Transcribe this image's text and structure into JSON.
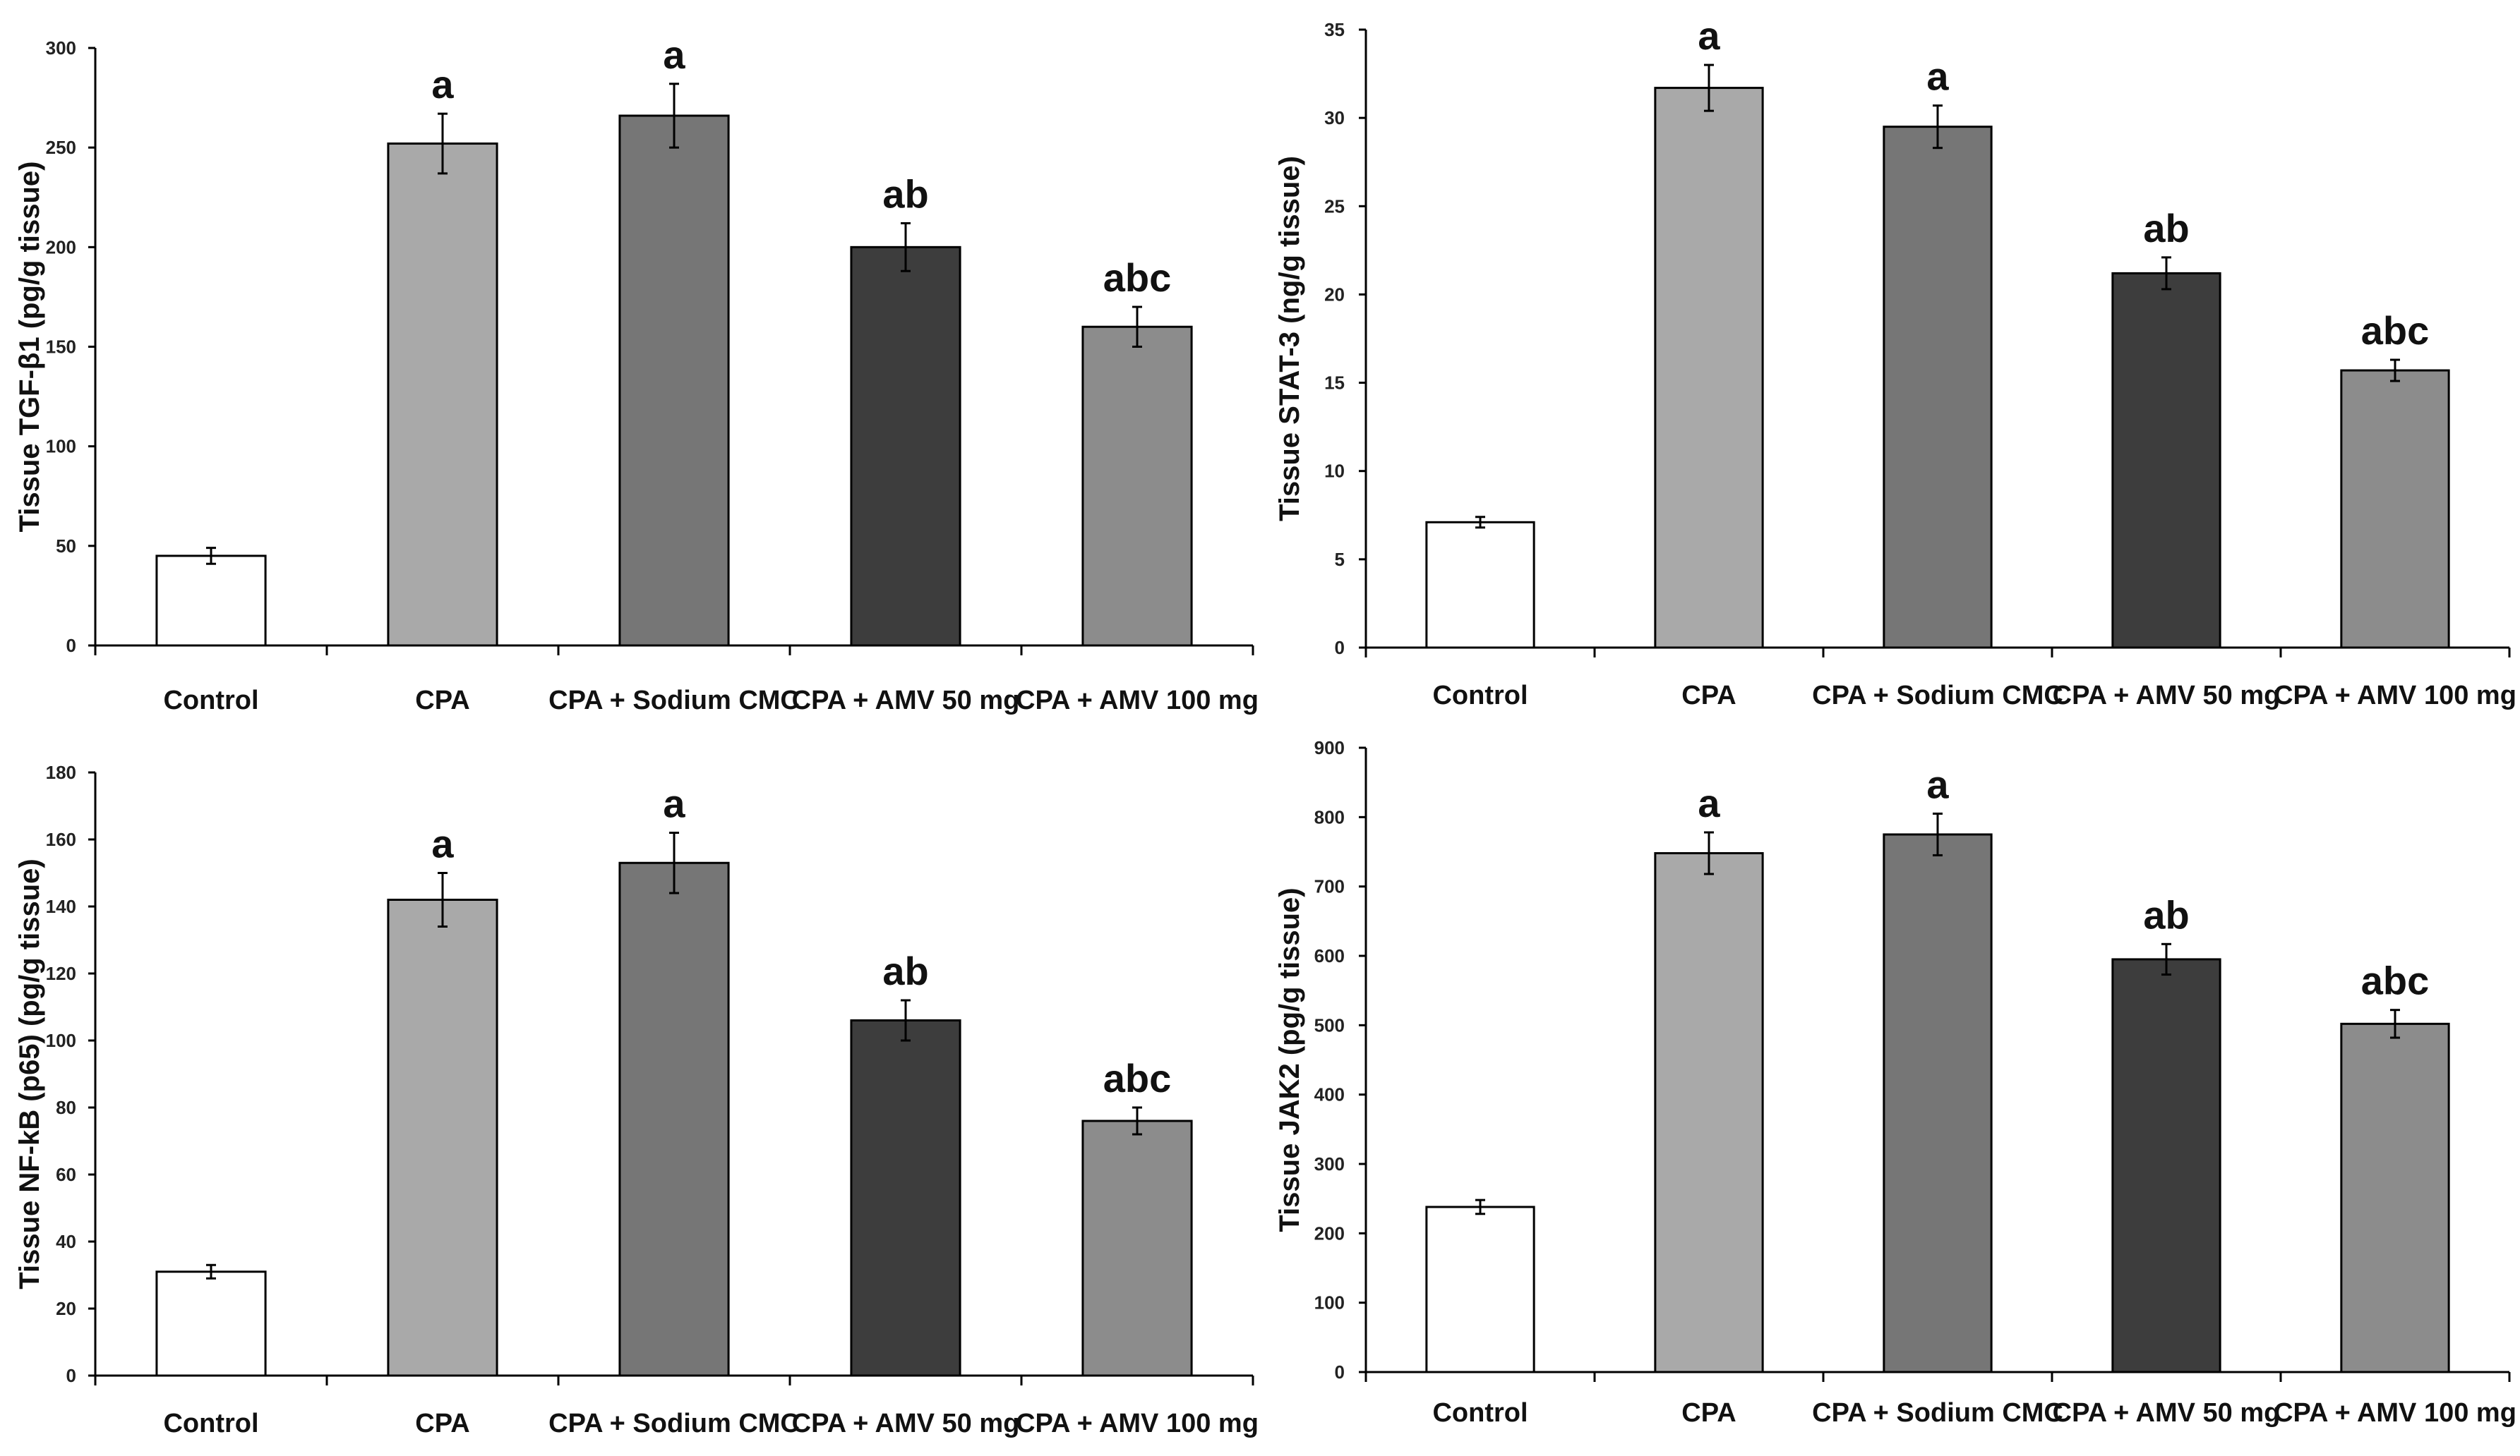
{
  "colors": {
    "Control": "#ffffff",
    "CPA": "#a9a9a9",
    "CPA + Sodium CMC": "#767676",
    "CPA + AMV 50 mg": "#3d3d3d",
    "CPA + AMV 100 mg": "#8c8c8c",
    "outline": "#000000"
  },
  "chart_data": [
    {
      "type": "bar",
      "position": "top-left",
      "categories": [
        "Control",
        "CPA",
        "CPA + Sodium CMC",
        "CPA + AMV 50 mg",
        "CPA + AMV 100 mg"
      ],
      "values": [
        45,
        252,
        266,
        200,
        160
      ],
      "errors": [
        4,
        15,
        16,
        12,
        10
      ],
      "significance": [
        "",
        "a",
        "a",
        "ab",
        "abc"
      ],
      "xlabel": "",
      "ylabel": "Tissue TGF-β1 (pg/g tissue)",
      "ylim": [
        0,
        300
      ],
      "yticks": [
        0,
        50,
        100,
        150,
        200,
        250,
        300
      ],
      "grid": false,
      "legend": "none"
    },
    {
      "type": "bar",
      "position": "top-right",
      "categories": [
        "Control",
        "CPA",
        "CPA + Sodium CMC",
        "CPA + AMV 50 mg",
        "CPA + AMV 100 mg"
      ],
      "values": [
        7.1,
        31.7,
        29.5,
        21.2,
        15.7
      ],
      "errors": [
        0.3,
        1.3,
        1.2,
        0.9,
        0.6
      ],
      "significance": [
        "",
        "a",
        "a",
        "ab",
        "abc"
      ],
      "xlabel": "",
      "ylabel": "Tissue STAT-3 (ng/g tissue)",
      "ylim": [
        0,
        35
      ],
      "yticks": [
        0,
        5,
        10,
        15,
        20,
        25,
        30,
        35
      ],
      "grid": false,
      "legend": "none"
    },
    {
      "type": "bar",
      "position": "bottom-left",
      "categories": [
        "Control",
        "CPA",
        "CPA + Sodium CMC",
        "CPA + AMV 50 mg",
        "CPA + AMV 100 mg"
      ],
      "values": [
        31,
        142,
        153,
        106,
        76
      ],
      "errors": [
        2,
        8,
        9,
        6,
        4
      ],
      "significance": [
        "",
        "a",
        "a",
        "ab",
        "abc"
      ],
      "xlabel": "",
      "ylabel": "Tissue NF-kB (p65) (pg/g tissue)",
      "ylim": [
        0,
        180
      ],
      "yticks": [
        0,
        20,
        40,
        60,
        80,
        100,
        120,
        140,
        160,
        180
      ],
      "grid": false,
      "legend": "none"
    },
    {
      "type": "bar",
      "position": "bottom-right",
      "categories": [
        "Control",
        "CPA",
        "CPA + Sodium CMC",
        "CPA + AMV 50 mg",
        "CPA + AMV 100 mg"
      ],
      "values": [
        238,
        748,
        775,
        595,
        502
      ],
      "errors": [
        10,
        30,
        30,
        22,
        20
      ],
      "significance": [
        "",
        "a",
        "a",
        "ab",
        "abc"
      ],
      "xlabel": "",
      "ylabel": "Tissue JAK2 (pg/g tissue)",
      "ylim": [
        0,
        900
      ],
      "yticks": [
        0,
        100,
        200,
        300,
        400,
        500,
        600,
        700,
        800,
        900
      ],
      "grid": false,
      "legend": "none"
    }
  ]
}
